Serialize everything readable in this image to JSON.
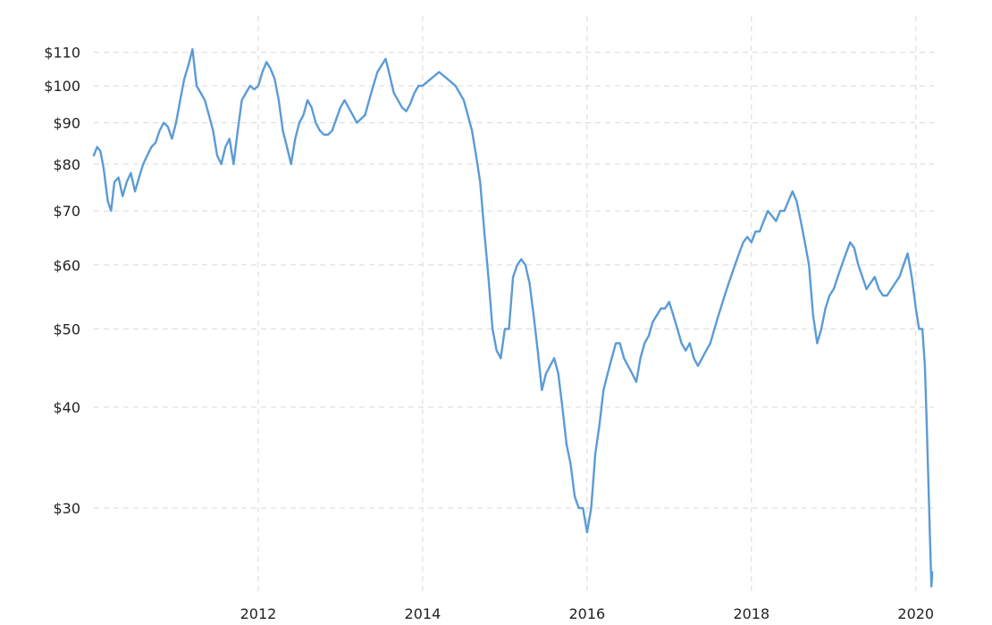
{
  "chart_data": {
    "type": "line",
    "title": "",
    "xlabel": "",
    "ylabel": "",
    "y_scale": "log",
    "grid": "on",
    "legend": "none",
    "xlim": [
      2010.0,
      2020.22
    ],
    "ylim": [
      23.5,
      122
    ],
    "y_ticks": [
      {
        "value": 30,
        "label": "$30"
      },
      {
        "value": 40,
        "label": "$40"
      },
      {
        "value": 50,
        "label": "$50"
      },
      {
        "value": 60,
        "label": "$60"
      },
      {
        "value": 70,
        "label": "$70"
      },
      {
        "value": 80,
        "label": "$80"
      },
      {
        "value": 90,
        "label": "$90"
      },
      {
        "value": 100,
        "label": "$100"
      },
      {
        "value": 110,
        "label": "$110"
      }
    ],
    "x_ticks": [
      {
        "value": 2012,
        "label": "2012"
      },
      {
        "value": 2014,
        "label": "2014"
      },
      {
        "value": 2016,
        "label": "2016"
      },
      {
        "value": 2018,
        "label": "2018"
      },
      {
        "value": 2020,
        "label": "2020"
      }
    ],
    "colors": {
      "line": "#5b9bd5",
      "grid": "#d9d9d9",
      "text": "#222222"
    },
    "series": [
      {
        "x": [
          2010.0,
          2010.04,
          2010.08,
          2010.12,
          2010.17,
          2010.21,
          2010.25,
          2010.3,
          2010.35,
          2010.4,
          2010.45,
          2010.5,
          2010.55,
          2010.6,
          2010.65,
          2010.7,
          2010.75,
          2010.8,
          2010.85,
          2010.9,
          2010.95,
          2011.0,
          2011.05,
          2011.1,
          2011.15,
          2011.2,
          2011.25,
          2011.3,
          2011.35,
          2011.4,
          2011.45,
          2011.5,
          2011.55,
          2011.6,
          2011.65,
          2011.7,
          2011.75,
          2011.8,
          2011.85,
          2011.9,
          2011.95,
          2012.0,
          2012.05,
          2012.1,
          2012.15,
          2012.2,
          2012.25,
          2012.3,
          2012.35,
          2012.4,
          2012.45,
          2012.5,
          2012.55,
          2012.6,
          2012.65,
          2012.7,
          2012.75,
          2012.8,
          2012.85,
          2012.9,
          2012.95,
          2013.0,
          2013.05,
          2013.1,
          2013.15,
          2013.2,
          2013.25,
          2013.3,
          2013.35,
          2013.4,
          2013.45,
          2013.5,
          2013.55,
          2013.6,
          2013.65,
          2013.7,
          2013.75,
          2013.8,
          2013.85,
          2013.9,
          2013.95,
          2014.0,
          2014.05,
          2014.1,
          2014.15,
          2014.2,
          2014.25,
          2014.3,
          2014.35,
          2014.4,
          2014.45,
          2014.5,
          2014.55,
          2014.6,
          2014.65,
          2014.7,
          2014.75,
          2014.8,
          2014.85,
          2014.9,
          2014.95,
          2015.0,
          2015.05,
          2015.1,
          2015.15,
          2015.2,
          2015.25,
          2015.3,
          2015.35,
          2015.4,
          2015.45,
          2015.5,
          2015.55,
          2015.6,
          2015.65,
          2015.7,
          2015.75,
          2015.8,
          2015.85,
          2015.9,
          2015.95,
          2016.0,
          2016.05,
          2016.1,
          2016.15,
          2016.2,
          2016.25,
          2016.3,
          2016.35,
          2016.4,
          2016.45,
          2016.5,
          2016.55,
          2016.6,
          2016.65,
          2016.7,
          2016.75,
          2016.8,
          2016.85,
          2016.9,
          2016.95,
          2017.0,
          2017.05,
          2017.1,
          2017.15,
          2017.2,
          2017.25,
          2017.3,
          2017.35,
          2017.4,
          2017.45,
          2017.5,
          2017.55,
          2017.6,
          2017.65,
          2017.7,
          2017.75,
          2017.8,
          2017.85,
          2017.9,
          2017.95,
          2018.0,
          2018.05,
          2018.1,
          2018.15,
          2018.2,
          2018.25,
          2018.3,
          2018.35,
          2018.4,
          2018.45,
          2018.5,
          2018.55,
          2018.6,
          2018.65,
          2018.7,
          2018.75,
          2018.8,
          2018.85,
          2018.9,
          2018.95,
          2019.0,
          2019.05,
          2019.1,
          2019.15,
          2019.2,
          2019.25,
          2019.3,
          2019.35,
          2019.4,
          2019.45,
          2019.5,
          2019.55,
          2019.6,
          2019.65,
          2019.7,
          2019.75,
          2019.8,
          2019.85,
          2019.9,
          2019.95,
          2020.0,
          2020.04,
          2020.08,
          2020.11,
          2020.13,
          2020.15,
          2020.17,
          2020.19,
          2020.2
        ],
        "values": [
          82,
          84,
          83,
          79,
          72,
          70,
          76,
          77,
          73,
          76,
          78,
          74,
          77,
          80,
          82,
          84,
          85,
          88,
          90,
          89,
          86,
          90,
          96,
          102,
          106,
          111,
          100,
          98,
          96,
          92,
          88,
          82,
          80,
          84,
          86,
          80,
          88,
          96,
          98,
          100,
          99,
          100,
          104,
          107,
          105,
          102,
          96,
          88,
          84,
          80,
          86,
          90,
          92,
          96,
          94,
          90,
          88,
          87,
          87,
          88,
          91,
          94,
          96,
          94,
          92,
          90,
          91,
          92,
          96,
          100,
          104,
          106,
          108,
          103,
          98,
          96,
          94,
          93,
          95,
          98,
          100,
          100,
          101,
          102,
          103,
          104,
          103,
          102,
          101,
          100,
          98,
          96,
          92,
          88,
          82,
          76,
          66,
          58,
          50,
          47,
          46,
          50,
          50,
          58,
          60,
          61,
          60,
          57,
          52,
          47,
          42,
          44,
          45,
          46,
          44,
          40,
          36,
          34,
          31,
          30,
          30,
          28,
          30,
          35,
          38,
          42,
          44,
          46,
          48,
          48,
          46,
          45,
          44,
          43,
          46,
          48,
          49,
          51,
          52,
          53,
          53,
          54,
          52,
          50,
          48,
          47,
          48,
          46,
          45,
          46,
          47,
          48,
          50,
          52,
          54,
          56,
          58,
          60,
          62,
          64,
          65,
          64,
          66,
          66,
          68,
          70,
          69,
          68,
          70,
          70,
          72,
          74,
          72,
          68,
          64,
          60,
          52,
          48,
          50,
          53,
          55,
          56,
          58,
          60,
          62,
          64,
          63,
          60,
          58,
          56,
          57,
          58,
          56,
          55,
          55,
          56,
          57,
          58,
          60,
          62,
          58,
          53,
          50,
          50,
          45,
          39,
          33,
          28,
          24,
          25
        ]
      }
    ]
  }
}
